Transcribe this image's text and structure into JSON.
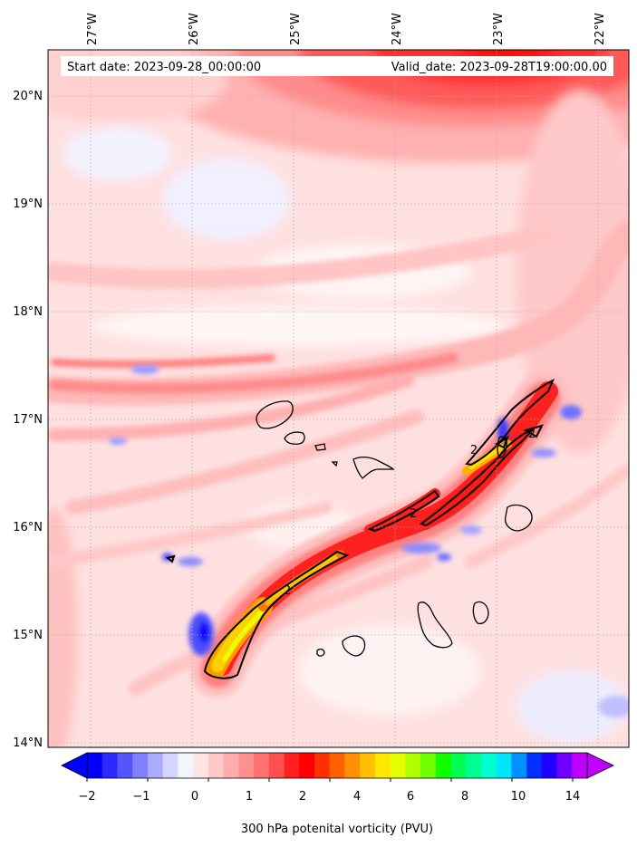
{
  "header": {
    "start_date": "Start date: 2023-09-28_00:00:00",
    "valid_date": "Valid_date: 2023-09-28T19:00:00.00"
  },
  "longitude_labels": [
    "27°W",
    "26°W",
    "25°W",
    "24°W",
    "23°W",
    "22°W"
  ],
  "latitude_labels": [
    "20°N",
    "19°N",
    "18°N",
    "17°N",
    "16°N",
    "15°N",
    "14°N"
  ],
  "contour_label": "2",
  "colorbar": {
    "tick_labels": [
      "−2",
      "−1",
      "0",
      "1",
      "2",
      "4",
      "6",
      "8",
      "10",
      "14"
    ],
    "label": "300 hPa potenital vorticity (PVU)",
    "colors": [
      "#0000ff",
      "#2a2aff",
      "#5555ff",
      "#7f7fff",
      "#aaaaff",
      "#d4d4ff",
      "#f4f4ff",
      "#ffe4e4",
      "#ffc8c8",
      "#ffacac",
      "#ff9090",
      "#ff7070",
      "#ff5050",
      "#ff2020",
      "#ff0000",
      "#ff3000",
      "#ff6000",
      "#ff9000",
      "#ffc000",
      "#ffe800",
      "#e6ff00",
      "#b0ff00",
      "#70ff00",
      "#10ff00",
      "#00ff50",
      "#00ff90",
      "#00ffd0",
      "#00e6ff",
      "#0090ff",
      "#0030ff",
      "#2000ff",
      "#7000ff",
      "#c000ff"
    ]
  },
  "colors": {
    "background_pink": "#ffe2e2",
    "high_pv_red": "#ff2424",
    "low_pv_blue": "#7a7aff",
    "coast": "#000000"
  }
}
